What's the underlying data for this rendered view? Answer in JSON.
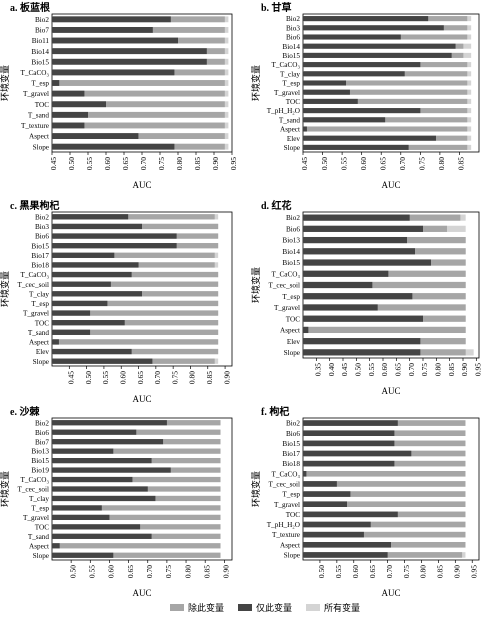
{
  "colors": {
    "excl": "#a6a6a6",
    "only": "#444444",
    "all": "#d4d4d4"
  },
  "legend": [
    "除此变量",
    "仅此变量",
    "所有变量"
  ],
  "chart_data": [
    {
      "type": "bar",
      "orientation": "horizontal",
      "panel": "a. 板蓝根",
      "xlabel": "AUC",
      "ylabel": "环境变量",
      "xlim": [
        0.45,
        0.95
      ],
      "xticks": [
        "0.45",
        "0.50",
        "0.55",
        "0.60",
        "0.65",
        "0.70",
        "0.75",
        "0.80",
        "0.85",
        "0.90",
        "0.95"
      ],
      "categories": [
        "Bio2",
        "Bio7",
        "Bio11",
        "Bio14",
        "Bio15",
        "T_CaCO₃",
        "T_esp",
        "T_gravel",
        "TOC",
        "T_sand",
        "T_texture",
        "Aspect",
        "Slope"
      ],
      "series": [
        {
          "name": "除此变量",
          "values": [
            0.93,
            0.93,
            0.93,
            0.93,
            0.93,
            0.93,
            0.93,
            0.93,
            0.93,
            0.93,
            0.93,
            0.93,
            0.93
          ]
        },
        {
          "name": "仅此变量",
          "values": [
            0.78,
            0.73,
            0.8,
            0.88,
            0.88,
            0.79,
            0.47,
            0.54,
            0.6,
            0.55,
            0.54,
            0.69,
            0.79
          ]
        },
        {
          "name": "所有变量",
          "values": [
            0.94,
            0.94,
            0.94,
            0.94,
            0.94,
            0.94,
            0.94,
            0.94,
            0.94,
            0.94,
            0.94,
            0.94,
            0.94
          ]
        }
      ]
    },
    {
      "type": "bar",
      "orientation": "horizontal",
      "panel": "b. 甘草",
      "xlabel": "AUC",
      "ylabel": "环境变量",
      "xlim": [
        0.45,
        0.9
      ],
      "xticks": [
        "0.45",
        "0.50",
        "0.55",
        "0.60",
        "0.65",
        "0.70",
        "0.75",
        "0.80",
        "0.85"
      ],
      "categories": [
        "Bio2",
        "Bio3",
        "Bio6",
        "Bio14",
        "Bio15",
        "T_CaCO₃",
        "T_clay",
        "T_esp",
        "T_gravel",
        "TOC",
        "T_pH_H₂O",
        "T_sand",
        "Aspect",
        "Elev",
        "Slope"
      ],
      "series": [
        {
          "name": "除此变量",
          "values": [
            0.87,
            0.87,
            0.87,
            0.86,
            0.86,
            0.87,
            0.87,
            0.87,
            0.87,
            0.87,
            0.87,
            0.87,
            0.87,
            0.87,
            0.87
          ]
        },
        {
          "name": "仅此变量",
          "values": [
            0.77,
            0.81,
            0.7,
            0.84,
            0.83,
            0.75,
            0.71,
            0.56,
            0.57,
            0.59,
            0.75,
            0.66,
            0.46,
            0.79,
            0.72
          ]
        },
        {
          "name": "所有变量",
          "values": [
            0.88,
            0.88,
            0.88,
            0.88,
            0.88,
            0.88,
            0.88,
            0.88,
            0.88,
            0.88,
            0.88,
            0.88,
            0.88,
            0.88,
            0.88
          ]
        }
      ]
    },
    {
      "type": "bar",
      "orientation": "horizontal",
      "panel": "c. 黑果枸杞",
      "xlabel": "AUC",
      "ylabel": "环境变量",
      "xlim": [
        0.4,
        0.92
      ],
      "xticks": [
        "0.45",
        "0.50",
        "0.55",
        "0.60",
        "0.65",
        "0.70",
        "0.75",
        "0.80",
        "0.85",
        "0.90"
      ],
      "categories": [
        "Bio2",
        "Bio3",
        "Bio6",
        "Bio15",
        "Bio17",
        "Bio18",
        "T_CaCO₃",
        "T_cec_soil",
        "T_clay",
        "T_esp",
        "T_gravel",
        "TOC",
        "T_sand",
        "Aspect",
        "Elev",
        "Slope"
      ],
      "series": [
        {
          "name": "除此变量",
          "values": [
            0.87,
            0.88,
            0.88,
            0.88,
            0.87,
            0.87,
            0.88,
            0.88,
            0.88,
            0.88,
            0.88,
            0.88,
            0.88,
            0.88,
            0.88,
            0.87
          ]
        },
        {
          "name": "仅此变量",
          "values": [
            0.62,
            0.66,
            0.76,
            0.76,
            0.58,
            0.65,
            0.63,
            0.57,
            0.66,
            0.56,
            0.51,
            0.61,
            0.51,
            0.42,
            0.63,
            0.69
          ]
        },
        {
          "name": "所有变量",
          "values": [
            0.88,
            0.88,
            0.88,
            0.88,
            0.88,
            0.88,
            0.88,
            0.88,
            0.88,
            0.88,
            0.88,
            0.88,
            0.88,
            0.88,
            0.88,
            0.88
          ]
        }
      ]
    },
    {
      "type": "bar",
      "orientation": "horizontal",
      "panel": "d. 红花",
      "xlabel": "AUC",
      "ylabel": "环境变量",
      "xlim": [
        0.3,
        0.96
      ],
      "xticks": [
        "0.35",
        "0.40",
        "0.45",
        "0.50",
        "0.55",
        "0.60",
        "0.65",
        "0.70",
        "0.75",
        "0.80",
        "0.85",
        "0.90",
        "0.95"
      ],
      "categories": [
        "Bio2",
        "Bio6",
        "Bio13",
        "Bio14",
        "Bio15",
        "T_CaCO₃",
        "T_cec_soil",
        "T_esp",
        "T_gravel",
        "TOC",
        "Aspect",
        "Elev",
        "Slope"
      ],
      "series": [
        {
          "name": "除此变量",
          "values": [
            0.89,
            0.84,
            0.91,
            0.91,
            0.91,
            0.91,
            0.91,
            0.91,
            0.91,
            0.91,
            0.91,
            0.91,
            0.91
          ]
        },
        {
          "name": "仅此变量",
          "values": [
            0.7,
            0.75,
            0.69,
            0.72,
            0.78,
            0.62,
            0.56,
            0.71,
            0.58,
            0.75,
            0.32,
            0.74,
            0.74
          ]
        },
        {
          "name": "所有变量",
          "values": [
            0.91,
            0.91,
            0.91,
            0.91,
            0.91,
            0.91,
            0.91,
            0.91,
            0.91,
            0.91,
            0.91,
            0.91,
            0.94
          ]
        }
      ]
    },
    {
      "type": "bar",
      "orientation": "horizontal",
      "panel": "e. 沙棘",
      "xlabel": "AUC",
      "ylabel": "环境变量",
      "xlim": [
        0.45,
        0.92
      ],
      "xticks": [
        "0.50",
        "0.55",
        "0.60",
        "0.65",
        "0.70",
        "0.75",
        "0.80",
        "0.85",
        "0.90"
      ],
      "categories": [
        "Bio2",
        "Bio6",
        "Bio7",
        "Bio13",
        "Bio15",
        "Bio19",
        "T_CaCO₃",
        "T_cec_soil",
        "T_clay",
        "T_esp",
        "T_gravel",
        "TOC",
        "T_sand",
        "Aspect",
        "Slope"
      ],
      "series": [
        {
          "name": "除此变量",
          "values": [
            0.89,
            0.89,
            0.89,
            0.89,
            0.89,
            0.89,
            0.89,
            0.89,
            0.89,
            0.89,
            0.89,
            0.89,
            0.89,
            0.89,
            0.89
          ]
        },
        {
          "name": "仅此变量",
          "values": [
            0.75,
            0.67,
            0.74,
            0.61,
            0.71,
            0.76,
            0.66,
            0.7,
            0.72,
            0.58,
            0.6,
            0.68,
            0.71,
            0.47,
            0.61
          ]
        },
        {
          "name": "所有变量",
          "values": [
            0.89,
            0.89,
            0.89,
            0.89,
            0.89,
            0.89,
            0.89,
            0.89,
            0.89,
            0.89,
            0.89,
            0.89,
            0.89,
            0.89,
            0.89
          ]
        }
      ]
    },
    {
      "type": "bar",
      "orientation": "horizontal",
      "panel": "f. 枸杞",
      "xlabel": "AUC",
      "ylabel": "环境变量",
      "xlim": [
        0.45,
        0.97
      ],
      "xticks": [
        "0.50",
        "0.55",
        "0.60",
        "0.65",
        "0.70",
        "0.75",
        "0.80",
        "0.85",
        "0.90",
        "0.95"
      ],
      "categories": [
        "Bio2",
        "Bio6",
        "Bio15",
        "Bio17",
        "Bio18",
        "T_CaCO₃",
        "T_cec_soil",
        "T_esp",
        "T_gravel",
        "TOC",
        "T_pH_H₂O",
        "T_texture",
        "Aspect",
        "Slope"
      ],
      "series": [
        {
          "name": "除此变量",
          "values": [
            0.93,
            0.93,
            0.93,
            0.93,
            0.93,
            0.93,
            0.93,
            0.93,
            0.93,
            0.93,
            0.93,
            0.93,
            0.93,
            0.92
          ]
        },
        {
          "name": "仅此变量",
          "values": [
            0.73,
            0.72,
            0.72,
            0.77,
            0.72,
            0.46,
            0.55,
            0.59,
            0.58,
            0.73,
            0.65,
            0.63,
            0.71,
            0.7
          ]
        },
        {
          "name": "所有变量",
          "values": [
            0.93,
            0.93,
            0.93,
            0.93,
            0.93,
            0.93,
            0.93,
            0.93,
            0.93,
            0.93,
            0.93,
            0.93,
            0.93,
            0.93
          ]
        }
      ]
    }
  ]
}
